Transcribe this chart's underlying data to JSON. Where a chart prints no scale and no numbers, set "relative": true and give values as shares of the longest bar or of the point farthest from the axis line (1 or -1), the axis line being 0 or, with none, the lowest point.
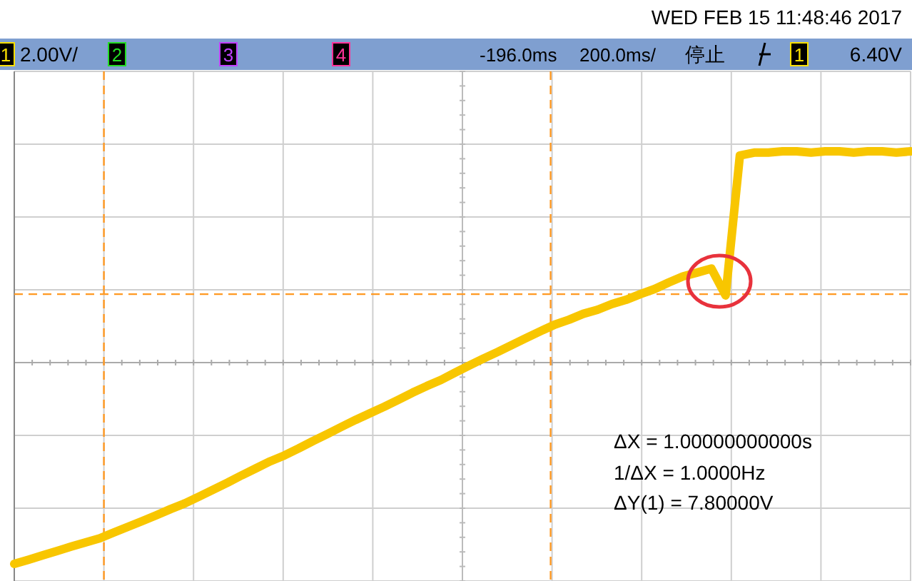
{
  "chart_data": {
    "type": "line",
    "relative": true,
    "grid": true,
    "legend": false,
    "tick_labels": false,
    "line_style": "solid",
    "marker": "none",
    "categories": [
      null,
      null,
      null,
      null,
      null,
      null,
      null,
      null,
      null,
      null,
      null,
      null,
      null,
      null,
      null,
      null,
      null,
      null,
      null,
      null,
      null,
      null,
      null,
      null,
      null,
      null,
      null,
      null,
      null,
      null,
      null,
      null,
      null,
      null,
      null,
      null,
      null,
      null,
      null,
      null,
      null,
      null,
      null,
      null,
      null,
      null,
      null,
      null,
      null,
      null,
      null,
      null,
      null,
      null,
      null,
      null,
      null,
      null,
      null,
      null,
      null,
      null,
      null,
      null
    ],
    "series": [
      {
        "color": "#f8c600",
        "values": [
          -0.953,
          -0.933,
          -0.912,
          -0.892,
          -0.871,
          -0.851,
          -0.832,
          -0.804,
          -0.777,
          -0.75,
          -0.722,
          -0.693,
          -0.666,
          -0.634,
          -0.601,
          -0.568,
          -0.533,
          -0.5,
          -0.467,
          -0.439,
          -0.406,
          -0.371,
          -0.338,
          -0.304,
          -0.271,
          -0.24,
          -0.209,
          -0.176,
          -0.142,
          -0.111,
          -0.082,
          -0.047,
          -0.013,
          0.02,
          0.051,
          0.084,
          0.117,
          0.149,
          0.18,
          0.203,
          0.231,
          0.25,
          0.277,
          0.297,
          0.324,
          0.348,
          0.379,
          0.408,
          0.426,
          0.445,
          0.318,
          0.98,
          0.994,
          0.994,
          1,
          1,
          0.994,
          1,
          1,
          0.994,
          1,
          1,
          0.994,
          1
        ]
      }
    ],
    "ref_lines": [
      {
        "axis": "y",
        "value": 0.324,
        "color": "#ff9922",
        "line_style": "dashed"
      }
    ],
    "annotations": [
      "WED FEB 15 11:48:46 2017",
      "1",
      "2.00V/",
      "2",
      "3",
      "4",
      "-196.0ms",
      "200.0ms/",
      "停止",
      "1",
      "6.40V",
      "ΔX = 1.00000000000s",
      "1/ΔX = 1.0000Hz",
      "ΔY(1) = 7.80000V"
    ]
  }
}
